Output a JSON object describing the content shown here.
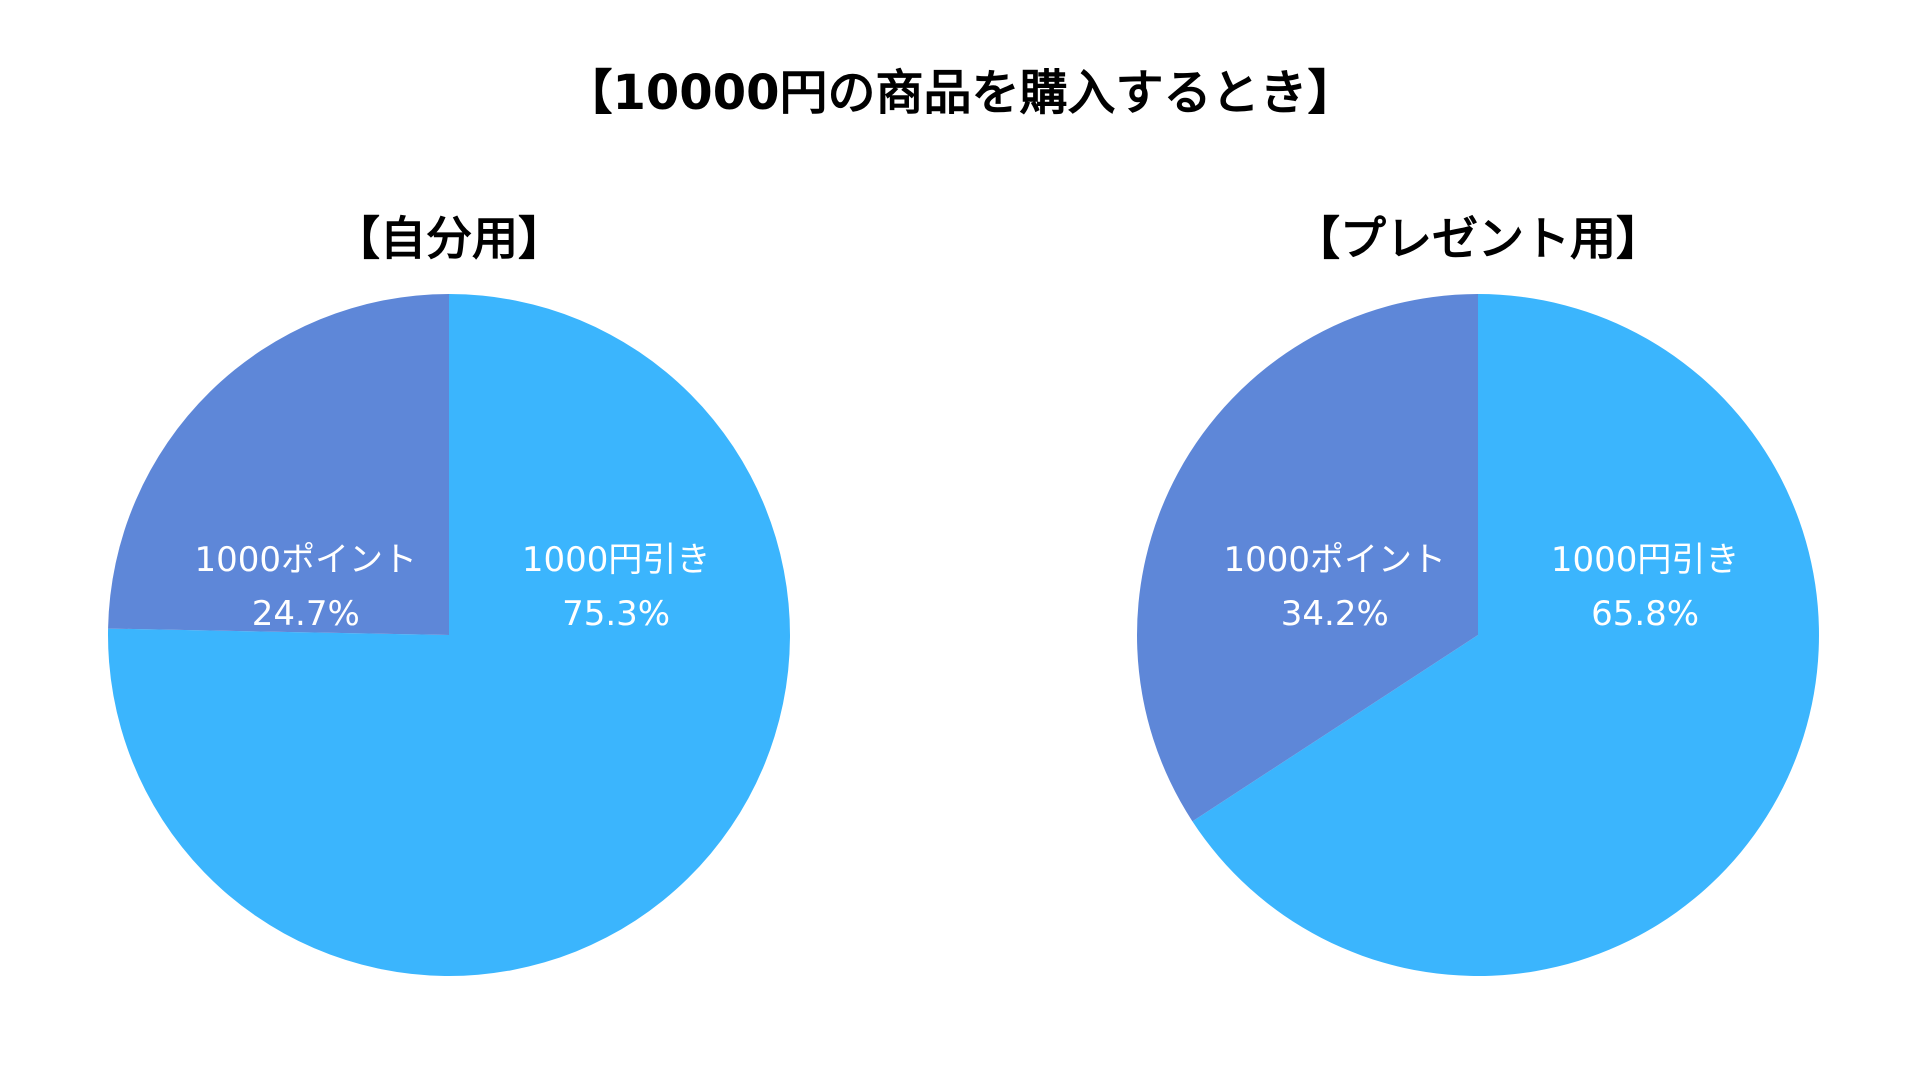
{
  "title": "【10000円の商品を購入するとき】",
  "chart_data": [
    {
      "type": "pie",
      "title": "【自分用】",
      "categories": [
        "1000円引き",
        "1000ポイント"
      ],
      "values": [
        75.3,
        24.7
      ],
      "value_labels": [
        "75.3%",
        "24.7%"
      ],
      "colors": [
        "#3bb5fd",
        "#5e87d8"
      ]
    },
    {
      "type": "pie",
      "title": "【プレゼント用】",
      "categories": [
        "1000円引き",
        "1000ポイント"
      ],
      "values": [
        65.8,
        34.2
      ],
      "value_labels": [
        "65.8%",
        "34.2%"
      ],
      "colors": [
        "#3bb5fd",
        "#5e87d8"
      ]
    }
  ]
}
